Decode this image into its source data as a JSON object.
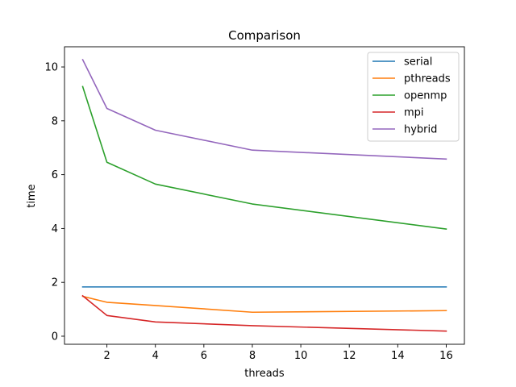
{
  "chart_data": {
    "type": "line",
    "title": "Comparison",
    "xlabel": "threads",
    "ylabel": "time",
    "x": [
      1,
      2,
      4,
      8,
      16
    ],
    "xlim": [
      0.25,
      16.75
    ],
    "ylim": [
      -0.3,
      10.75
    ],
    "xticks": [
      2,
      4,
      6,
      8,
      10,
      12,
      14,
      16
    ],
    "yticks": [
      0,
      2,
      4,
      6,
      8,
      10
    ],
    "grid": false,
    "legend_position": "top-right",
    "series": [
      {
        "name": "serial",
        "color": "#1f77b4",
        "values": [
          1.83,
          1.83,
          1.83,
          1.83,
          1.83
        ]
      },
      {
        "name": "pthreads",
        "color": "#ff7f0e",
        "values": [
          1.48,
          1.26,
          1.14,
          0.89,
          0.95
        ]
      },
      {
        "name": "openmp",
        "color": "#2ca02c",
        "values": [
          9.27,
          6.46,
          5.65,
          4.91,
          3.98
        ]
      },
      {
        "name": "mpi",
        "color": "#d62728",
        "values": [
          1.5,
          0.77,
          0.53,
          0.39,
          0.19
        ]
      },
      {
        "name": "hybrid",
        "color": "#9467bd",
        "values": [
          10.27,
          8.46,
          7.65,
          6.91,
          6.58
        ]
      }
    ]
  }
}
